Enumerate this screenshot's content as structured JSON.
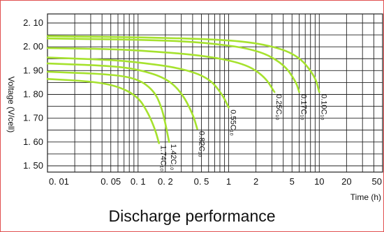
{
  "caption": "Discharge performance",
  "chart_data": {
    "type": "line",
    "title": "Discharge performance",
    "xlabel": "Time (h)",
    "ylabel": "Voltage (V/cell)",
    "x_scale": "log",
    "xlim": [
      0.01,
      50
    ],
    "ylim": [
      1.45,
      2.12
    ],
    "grid": true,
    "x_ticks": [
      0.01,
      0.05,
      0.1,
      0.2,
      0.5,
      1,
      2,
      5,
      10,
      20,
      50
    ],
    "x_tick_labels": [
      "0. 01",
      "0. 05",
      "0. 1",
      "0. 2",
      "0. 5",
      "1",
      "2",
      "5",
      "10",
      "20",
      "50"
    ],
    "y_ticks": [
      2.1,
      2.0,
      1.9,
      1.8,
      1.7,
      1.6,
      1.5
    ],
    "y_tick_labels": [
      "2. 10",
      "2. 00",
      "1. 90",
      "1. 80",
      "1. 70",
      "1. 60",
      "1. 50"
    ],
    "line_color": "#a6e22e",
    "series": [
      {
        "name": "1.74C",
        "label": "1.74C₁₀",
        "x": [
          0.01,
          0.03,
          0.06,
          0.1,
          0.13,
          0.155,
          0.17
        ],
        "y": [
          1.865,
          1.855,
          1.835,
          1.79,
          1.72,
          1.65,
          1.595
        ]
      },
      {
        "name": "1.42C",
        "label": "1.42C₁₀",
        "x": [
          0.01,
          0.05,
          0.1,
          0.15,
          0.18,
          0.2,
          0.22
        ],
        "y": [
          1.895,
          1.885,
          1.865,
          1.815,
          1.75,
          1.68,
          1.6
        ]
      },
      {
        "name": "0.82C",
        "label": "0.82C₁₀",
        "x": [
          0.01,
          0.05,
          0.1,
          0.2,
          0.3,
          0.4,
          0.45
        ],
        "y": [
          1.93,
          1.92,
          1.905,
          1.87,
          1.81,
          1.72,
          1.655
        ]
      },
      {
        "name": "0.55C",
        "label": "0.55C₁₀",
        "x": [
          0.01,
          0.05,
          0.1,
          0.3,
          0.6,
          0.85,
          1.0
        ],
        "y": [
          1.955,
          1.945,
          1.935,
          1.91,
          1.87,
          1.8,
          1.745
        ]
      },
      {
        "name": "0.25C",
        "label": "0.25C₁₀",
        "x": [
          0.01,
          0.05,
          0.1,
          0.5,
          1.5,
          2.5,
          3.2
        ],
        "y": [
          1.995,
          1.99,
          1.985,
          1.965,
          1.93,
          1.875,
          1.81
        ]
      },
      {
        "name": "0.17C",
        "label": "0.17C₁₀",
        "x": [
          0.01,
          0.1,
          0.5,
          2,
          4,
          5.5,
          6.0
        ],
        "y": [
          2.035,
          2.03,
          2.02,
          1.99,
          1.93,
          1.855,
          1.81
        ]
      },
      {
        "name": "0.10C",
        "label": "0.10C₁₀",
        "x": [
          0.01,
          0.1,
          1,
          3,
          6,
          9,
          10
        ],
        "y": [
          2.045,
          2.04,
          2.03,
          2.005,
          1.96,
          1.875,
          1.81
        ]
      }
    ]
  }
}
